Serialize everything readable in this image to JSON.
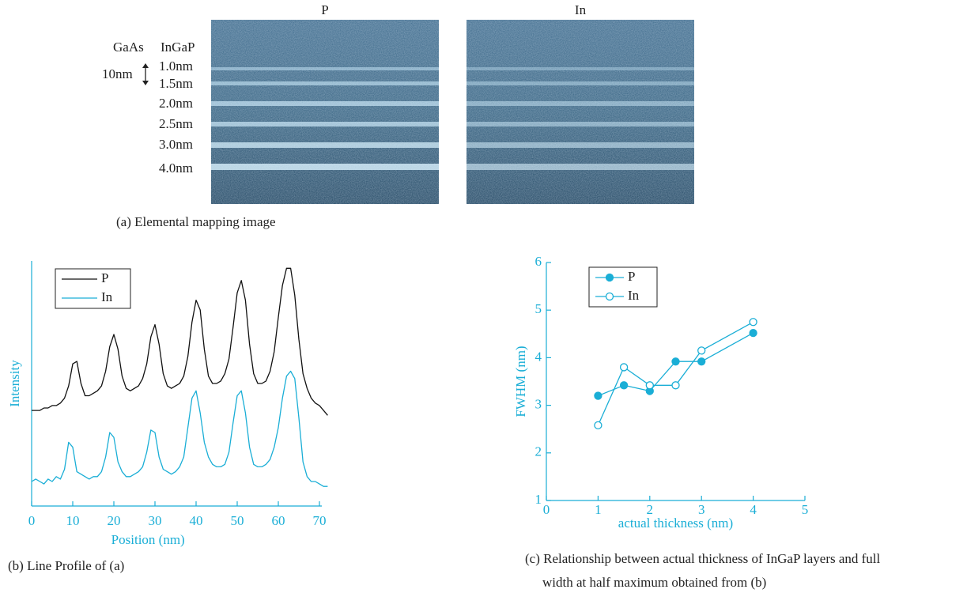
{
  "panel_a": {
    "images": [
      {
        "label": "P"
      },
      {
        "label": "In"
      }
    ],
    "gaas": "GaAs",
    "ingap": "InGaP",
    "scale": "10nm",
    "layers": [
      "1.0nm",
      "1.5nm",
      "2.0nm",
      "2.5nm",
      "3.0nm",
      "4.0nm"
    ],
    "caption": "(a) Elemental mapping image"
  },
  "chart_data": [
    {
      "type": "line",
      "caption": "(b) Line Profile of (a)",
      "x_label": "Position (nm)",
      "y_label": "Intensity",
      "xlim": [
        0,
        72
      ],
      "ylim": [
        0,
        100
      ],
      "xticks": [
        0,
        10,
        20,
        30,
        40,
        50,
        60,
        70
      ],
      "x": [
        0,
        1,
        2,
        3,
        4,
        5,
        6,
        7,
        8,
        9,
        10,
        11,
        12,
        13,
        14,
        15,
        16,
        17,
        18,
        19,
        20,
        21,
        22,
        23,
        24,
        25,
        26,
        27,
        28,
        29,
        30,
        31,
        32,
        33,
        34,
        35,
        36,
        37,
        38,
        39,
        40,
        41,
        42,
        43,
        44,
        45,
        46,
        47,
        48,
        49,
        50,
        51,
        52,
        53,
        54,
        55,
        56,
        57,
        58,
        59,
        60,
        61,
        62,
        63,
        64,
        65,
        66,
        67,
        68,
        69,
        70,
        71,
        72
      ],
      "series": [
        {
          "name": "P",
          "color": "#111111",
          "values": [
            39,
            39,
            39,
            40,
            40,
            41,
            41,
            42,
            44,
            49,
            58,
            59,
            50,
            45,
            45,
            46,
            47,
            49,
            55,
            65,
            70,
            64,
            53,
            48,
            47,
            48,
            49,
            52,
            58,
            69,
            74,
            66,
            54,
            49,
            48,
            49,
            50,
            53,
            61,
            75,
            84,
            80,
            64,
            53,
            50,
            50,
            51,
            54,
            60,
            73,
            87,
            92,
            84,
            66,
            54,
            50,
            50,
            51,
            55,
            63,
            77,
            90,
            97,
            97,
            86,
            68,
            54,
            48,
            44,
            42,
            41,
            39,
            37
          ]
        },
        {
          "name": "In",
          "color": "#1aaed6",
          "values": [
            10,
            11,
            10,
            9,
            11,
            10,
            12,
            11,
            15,
            26,
            24,
            14,
            13,
            12,
            11,
            12,
            12,
            14,
            20,
            30,
            28,
            18,
            14,
            12,
            12,
            13,
            14,
            16,
            22,
            31,
            30,
            20,
            15,
            14,
            13,
            14,
            16,
            20,
            32,
            44,
            47,
            38,
            26,
            20,
            17,
            16,
            16,
            17,
            22,
            34,
            45,
            47,
            38,
            24,
            17,
            16,
            16,
            17,
            19,
            24,
            32,
            44,
            53,
            55,
            52,
            36,
            18,
            12,
            10,
            10,
            9,
            8,
            8
          ]
        }
      ]
    },
    {
      "type": "line",
      "caption": [
        "(c) Relationship between actual thickness of InGaP layers and full",
        "width at half maximum obtained from (b)"
      ],
      "x_label": "actual thickness (nm)",
      "y_label": "FWHM (nm)",
      "xlim": [
        0,
        5
      ],
      "ylim": [
        1,
        6
      ],
      "xticks": [
        0,
        1,
        2,
        3,
        4,
        5
      ],
      "yticks": [
        1,
        2,
        3,
        4,
        5,
        6
      ],
      "x": [
        1,
        1.5,
        2,
        2.5,
        3,
        4
      ],
      "series": [
        {
          "name": "P",
          "color": "#1aaed6",
          "marker": "filled",
          "values": [
            3.2,
            3.42,
            3.3,
            3.92,
            3.92,
            4.52
          ]
        },
        {
          "name": "In",
          "color": "#1aaed6",
          "marker": "open",
          "values": [
            2.58,
            3.8,
            3.42,
            3.42,
            4.15,
            4.75
          ]
        }
      ]
    }
  ]
}
